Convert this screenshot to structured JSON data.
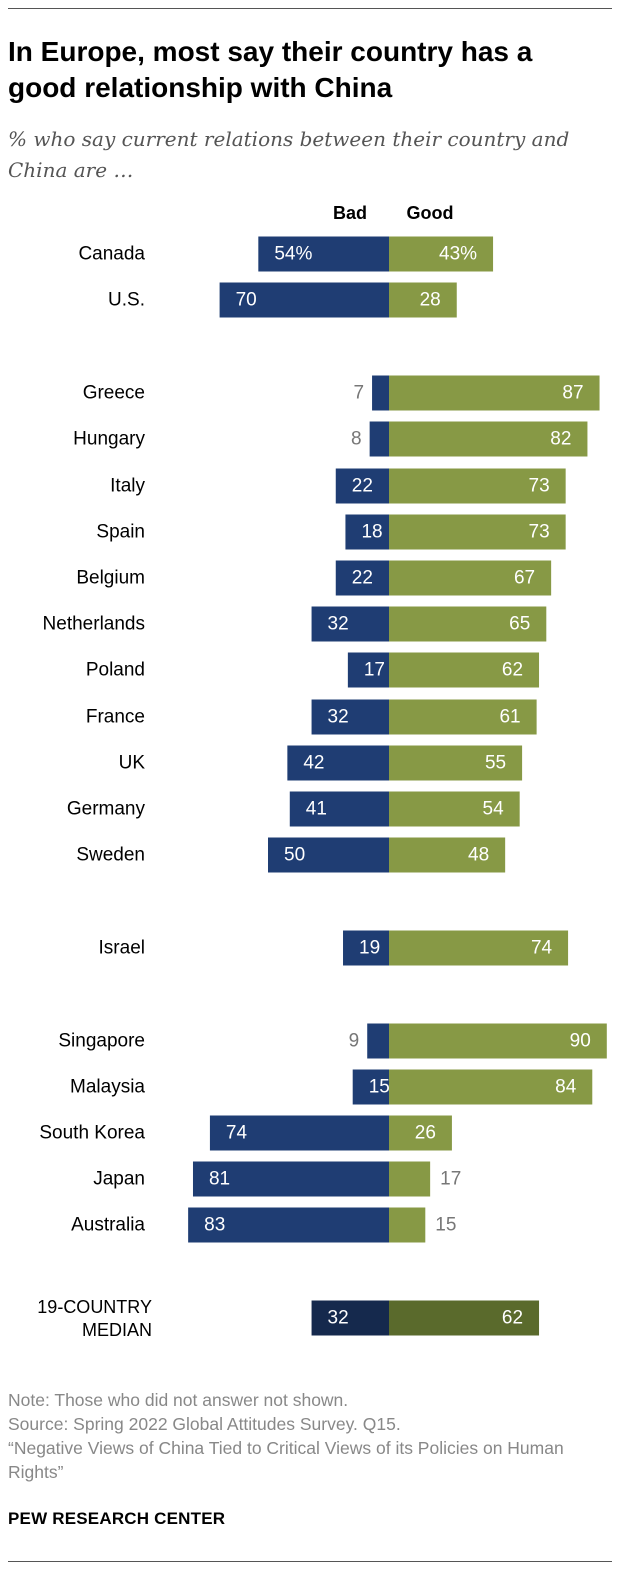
{
  "title": "In Europe, most say their country has a good relationship with China",
  "subtitle": "% who say current relations between their country and China are …",
  "chart_data": {
    "type": "bar",
    "orientation": "horizontal-diverging",
    "series": [
      {
        "name": "Bad",
        "color": "#1f3d73",
        "values": [
          54,
          70,
          7,
          8,
          22,
          18,
          22,
          32,
          17,
          32,
          42,
          41,
          50,
          19,
          9,
          15,
          74,
          81,
          83,
          32
        ]
      },
      {
        "name": "Good",
        "color": "#879945",
        "values": [
          43,
          28,
          87,
          82,
          73,
          73,
          67,
          65,
          62,
          61,
          55,
          54,
          48,
          74,
          90,
          84,
          26,
          17,
          15,
          62
        ]
      }
    ],
    "categories": [
      "Canada",
      "U.S.",
      "Greece",
      "Hungary",
      "Italy",
      "Spain",
      "Belgium",
      "Netherlands",
      "Poland",
      "France",
      "UK",
      "Germany",
      "Sweden",
      "Israel",
      "Singapore",
      "Malaysia",
      "South Korea",
      "Japan",
      "Australia",
      "19-COUNTRY MEDIAN"
    ],
    "groups": [
      [
        0,
        1
      ],
      [
        2,
        3,
        4,
        5,
        6,
        7,
        8,
        9,
        10,
        11,
        12
      ],
      [
        13
      ],
      [
        14,
        15,
        16,
        17,
        18
      ],
      [
        19
      ]
    ],
    "median_colors": {
      "Bad": "#15294d",
      "Good": "#5a6a2c"
    },
    "value_suffix_first_row": "%",
    "xlim": [
      -90,
      90
    ],
    "legend": "top"
  },
  "notes": {
    "note": "Note: Those who did not answer not shown.",
    "source": "Source: Spring 2022 Global Attitudes Survey. Q15.",
    "report": "“Negative Views of China Tied to Critical Views of its Policies on Human Rights”"
  },
  "brand": "PEW RESEARCH CENTER"
}
